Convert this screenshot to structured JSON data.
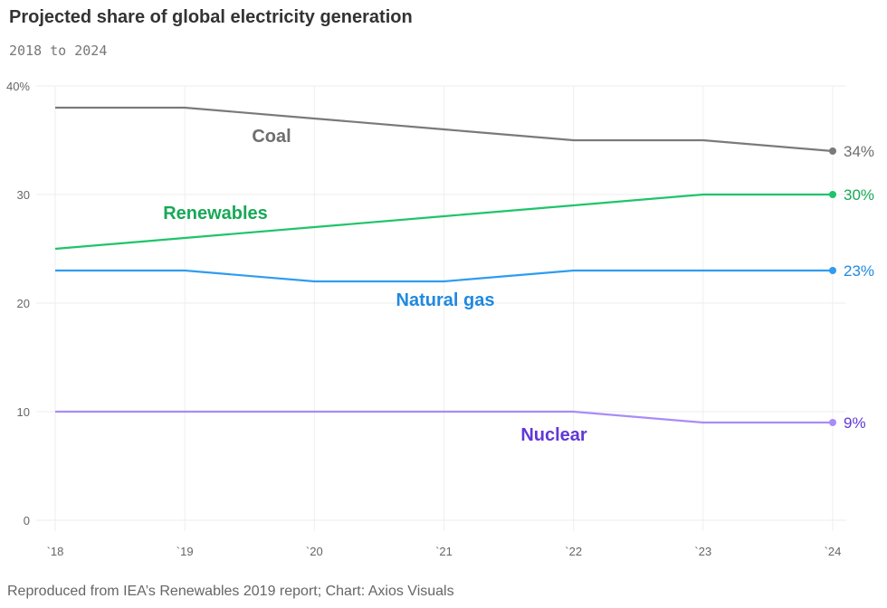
{
  "chart_data": {
    "type": "line",
    "title": "Projected share of global electricity generation",
    "subtitle": "2018 to 2024",
    "source": "Reproduced from IEA’s Renewables 2019 report; Chart: Axios Visuals",
    "x": [
      "`18",
      "`19",
      "`20",
      "`21",
      "`22",
      "`23",
      "`24"
    ],
    "ylim": [
      0,
      40
    ],
    "yticks": [
      0,
      10,
      20,
      30,
      40
    ],
    "ytick_labels": [
      "0",
      "10",
      "20",
      "30",
      "40%"
    ],
    "grid": true,
    "series": [
      {
        "name": "Coal",
        "color": "#7a7a7a",
        "label_color": "#6e6e6e",
        "values": [
          38,
          38,
          37,
          36,
          35,
          35,
          34
        ],
        "end_label": "34%"
      },
      {
        "name": "Renewables",
        "color": "#1fc46a",
        "label_color": "#17a857",
        "values": [
          25,
          26,
          27,
          28,
          29,
          30,
          30
        ],
        "end_label": "30%"
      },
      {
        "name": "Natural gas",
        "color": "#2f9cf0",
        "label_color": "#2089e0",
        "values": [
          23,
          23,
          22,
          22,
          23,
          23,
          23
        ],
        "end_label": "23%"
      },
      {
        "name": "Nuclear",
        "color": "#a98cf6",
        "label_color": "#6038d8",
        "values": [
          10,
          10,
          10,
          10,
          10,
          9,
          9
        ],
        "end_label": "9%"
      }
    ]
  }
}
